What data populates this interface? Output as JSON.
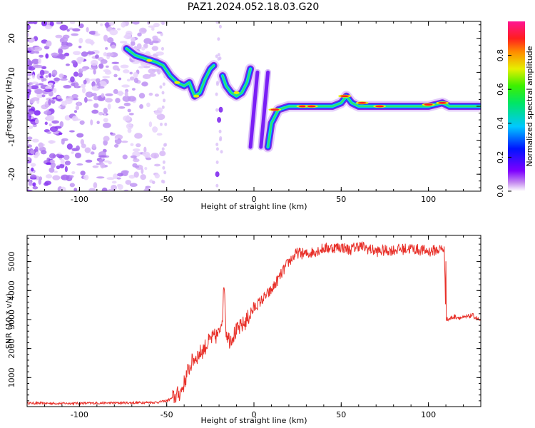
{
  "figure_title": "PAZ1.2024.052.18.03.G20",
  "chart_data": [
    {
      "type": "heatmap",
      "title": "PAZ1.2024.052.18.03.G20",
      "xlabel": "Height of straight line (km)",
      "ylabel": "Frequency (Hz)",
      "xlim": [
        -130,
        130
      ],
      "ylim": [
        -25,
        25
      ],
      "xticks": [
        -100,
        -50,
        0,
        50,
        100
      ],
      "yticks": [
        -20,
        -10,
        0,
        10,
        20
      ],
      "colorbar": {
        "label": "Normalized spectral amplitude",
        "range": [
          0,
          1
        ],
        "ticks": [
          0.0,
          0.2,
          0.4,
          0.6,
          0.8
        ],
        "tick_labels": [
          "0.0",
          "0.2",
          "0.4",
          "0.6",
          "0.8"
        ],
        "colormap": "rainbow (white → purple → blue → cyan → green → yellow → red → magenta)"
      },
      "ridge": {
        "description": "dominant frequency track (Hz) vs height (km)",
        "x": [
          -73,
          -68,
          -62,
          -56,
          -52,
          -48,
          -44,
          -40,
          -37,
          -34,
          -31,
          -28,
          -25,
          -23
        ],
        "y": [
          17,
          15,
          14,
          13,
          12,
          9,
          7,
          6,
          7,
          3,
          4,
          8,
          11,
          12
        ],
        "x2": [
          -18,
          -16,
          -13,
          -10,
          -7,
          -4,
          -2
        ],
        "y2": [
          9,
          6,
          4,
          3,
          4,
          7,
          11
        ],
        "x3": [
          8,
          10,
          14,
          20,
          30,
          40,
          45,
          50,
          53,
          56,
          60,
          70,
          80,
          90,
          100,
          108,
          112,
          120,
          130
        ],
        "y3": [
          -12,
          -5,
          -1,
          0,
          0,
          0,
          0,
          1,
          3,
          1,
          0,
          0,
          0,
          0,
          0,
          1,
          0,
          0,
          0
        ]
      },
      "diagonal_streaks": [
        {
          "x": [
            -2,
            2
          ],
          "y": [
            -12,
            10
          ]
        },
        {
          "x": [
            4,
            8
          ],
          "y": [
            -12,
            10
          ]
        }
      ]
    },
    {
      "type": "line",
      "xlabel": "Height of straight line (km)",
      "ylabel": "SNR (10 * v/v)",
      "xlim": [
        -130,
        130
      ],
      "ylim": [
        0,
        5900
      ],
      "xticks": [
        -100,
        -50,
        0,
        50,
        100
      ],
      "yticks": [
        1000,
        2000,
        3000,
        4000,
        5000
      ],
      "color": "#e8312a",
      "series": [
        {
          "x": [
            -130,
            -110,
            -90,
            -70,
            -55,
            -50,
            -45,
            -42,
            -40,
            -38,
            -35,
            -30,
            -25,
            -20,
            -18,
            -17,
            -16,
            -14,
            -10,
            -5,
            0,
            5,
            10,
            15,
            20,
            25,
            30,
            40,
            50,
            55,
            60,
            70,
            80,
            90,
            100,
            105,
            109,
            110,
            111,
            115,
            120,
            125,
            130
          ],
          "y": [
            120,
            110,
            120,
            130,
            150,
            200,
            350,
            500,
            800,
            1200,
            1600,
            1900,
            2300,
            2500,
            3200,
            4300,
            2600,
            2300,
            2600,
            2900,
            3400,
            3700,
            4000,
            4500,
            5000,
            5300,
            5250,
            5450,
            5500,
            5400,
            5550,
            5350,
            5400,
            5450,
            5350,
            5400,
            5450,
            3050,
            3000,
            3100,
            3050,
            3150,
            2950
          ]
        }
      ]
    }
  ],
  "colors": {
    "line": "#e8312a",
    "noise": "#8a2be2"
  }
}
